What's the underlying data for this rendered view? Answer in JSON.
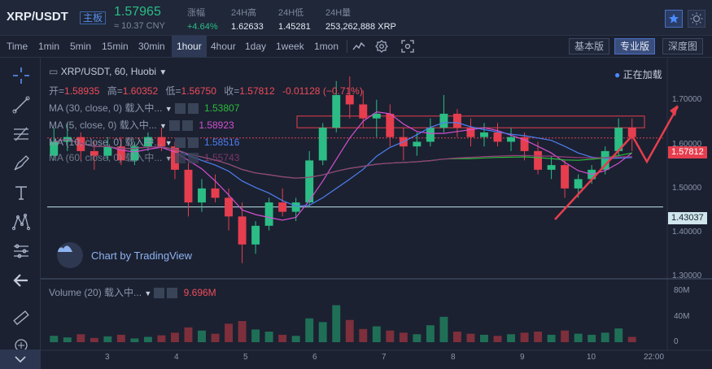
{
  "header": {
    "pair": "XRP/USDT",
    "board_badge": "主板",
    "last_price": "1.57965",
    "cny_price": "≈ 10.37 CNY",
    "stats": [
      {
        "label": "涨幅",
        "value": "+4.64%"
      },
      {
        "label": "24H高",
        "value": "1.62633"
      },
      {
        "label": "24H低",
        "value": "1.45281"
      },
      {
        "label": "24H量",
        "value": "253,262,888 XRP"
      }
    ],
    "star_icon": "star-icon",
    "theme_icon": "sun-icon"
  },
  "toolbar": {
    "intervals": [
      "Time",
      "1min",
      "5min",
      "15min",
      "30min",
      "1hour",
      "4hour",
      "1day",
      "1week",
      "1mon"
    ],
    "active_interval": "1hour",
    "view_buttons": [
      "基本版",
      "专业版",
      "深度图"
    ],
    "active_view": "专业版"
  },
  "legend": {
    "symbol": "XRP/USDT, 60, Huobi",
    "open_label": "开=",
    "open": "1.58935",
    "high_label": "高=",
    "high": "1.60352",
    "low_label": "低=",
    "low": "1.56750",
    "close_label": "收=",
    "close": "1.57812",
    "change": "-0.01128 (−0.71%)",
    "live_status": "正在加载",
    "ma": [
      {
        "label": "MA (30, close, 0) 载入中...",
        "value": "1.53807",
        "color": "#2bbd3a"
      },
      {
        "label": "MA (5, close, 0) 载入中...",
        "value": "1.58923",
        "color": "#d34fd0"
      },
      {
        "label": "MA (10, close, 0) 载入中...",
        "value": "1.58516",
        "color": "#4f7ef0"
      },
      {
        "label": "MA (60, close, 0) 载入中...",
        "value": "1.55743",
        "color": "#9c3d7d"
      }
    ],
    "volume_label": "Volume (20) 载入中...",
    "volume_value": "9.696M"
  },
  "branding": "Chart by TradingView",
  "price_axis": [
    "1.70000",
    "1.60000",
    "1.50000",
    "1.40000",
    "1.30000"
  ],
  "price_tags": {
    "current": "1.57812",
    "support": "1.43037"
  },
  "volume_axis": [
    "80M",
    "40M",
    "0"
  ],
  "time_axis": [
    "3",
    "4",
    "5",
    "6",
    "7",
    "8",
    "9",
    "10",
    "22:00"
  ],
  "chart_data": {
    "type": "candlestick",
    "symbol": "XRP/USDT",
    "interval": "60",
    "exchange": "Huobi",
    "ylim": [
      1.28,
      1.75
    ],
    "current_price": 1.57812,
    "support_level": 1.43037,
    "resistance_zone": [
      1.6,
      1.625
    ],
    "ohlc": [
      [
        1.54,
        1.6,
        1.53,
        1.57
      ],
      [
        1.57,
        1.61,
        1.55,
        1.58
      ],
      [
        1.58,
        1.59,
        1.53,
        1.55
      ],
      [
        1.55,
        1.57,
        1.51,
        1.54
      ],
      [
        1.54,
        1.58,
        1.53,
        1.56
      ],
      [
        1.56,
        1.58,
        1.52,
        1.53
      ],
      [
        1.53,
        1.57,
        1.52,
        1.56
      ],
      [
        1.56,
        1.59,
        1.55,
        1.58
      ],
      [
        1.58,
        1.6,
        1.55,
        1.56
      ],
      [
        1.56,
        1.57,
        1.49,
        1.51
      ],
      [
        1.51,
        1.53,
        1.41,
        1.44
      ],
      [
        1.44,
        1.49,
        1.42,
        1.47
      ],
      [
        1.47,
        1.5,
        1.44,
        1.45
      ],
      [
        1.45,
        1.47,
        1.38,
        1.41
      ],
      [
        1.41,
        1.44,
        1.31,
        1.35
      ],
      [
        1.35,
        1.4,
        1.33,
        1.39
      ],
      [
        1.39,
        1.45,
        1.38,
        1.44
      ],
      [
        1.44,
        1.47,
        1.41,
        1.42
      ],
      [
        1.42,
        1.45,
        1.4,
        1.44
      ],
      [
        1.44,
        1.55,
        1.43,
        1.53
      ],
      [
        1.53,
        1.61,
        1.52,
        1.6
      ],
      [
        1.6,
        1.7,
        1.59,
        1.67
      ],
      [
        1.67,
        1.71,
        1.62,
        1.65
      ],
      [
        1.65,
        1.68,
        1.6,
        1.62
      ],
      [
        1.62,
        1.66,
        1.58,
        1.63
      ],
      [
        1.63,
        1.65,
        1.56,
        1.58
      ],
      [
        1.58,
        1.6,
        1.53,
        1.56
      ],
      [
        1.56,
        1.59,
        1.54,
        1.57
      ],
      [
        1.57,
        1.62,
        1.56,
        1.6
      ],
      [
        1.6,
        1.67,
        1.59,
        1.63
      ],
      [
        1.63,
        1.64,
        1.58,
        1.6
      ],
      [
        1.6,
        1.62,
        1.56,
        1.58
      ],
      [
        1.58,
        1.61,
        1.56,
        1.59
      ],
      [
        1.59,
        1.61,
        1.56,
        1.57
      ],
      [
        1.57,
        1.6,
        1.55,
        1.58
      ],
      [
        1.58,
        1.59,
        1.53,
        1.55
      ],
      [
        1.55,
        1.57,
        1.5,
        1.51
      ],
      [
        1.51,
        1.54,
        1.49,
        1.52
      ],
      [
        1.52,
        1.53,
        1.45,
        1.47
      ],
      [
        1.47,
        1.5,
        1.45,
        1.49
      ],
      [
        1.49,
        1.52,
        1.48,
        1.51
      ],
      [
        1.51,
        1.56,
        1.5,
        1.55
      ],
      [
        1.55,
        1.62,
        1.54,
        1.6
      ],
      [
        1.6,
        1.62,
        1.55,
        1.58
      ]
    ],
    "ma": [
      {
        "name": "MA30",
        "last": 1.53807
      },
      {
        "name": "MA5",
        "last": 1.58923
      },
      {
        "name": "MA10",
        "last": 1.58516
      },
      {
        "name": "MA60",
        "last": 1.55743
      }
    ],
    "volume": {
      "ylim": [
        0,
        100
      ],
      "unit": "M",
      "last": 9.696
    }
  }
}
